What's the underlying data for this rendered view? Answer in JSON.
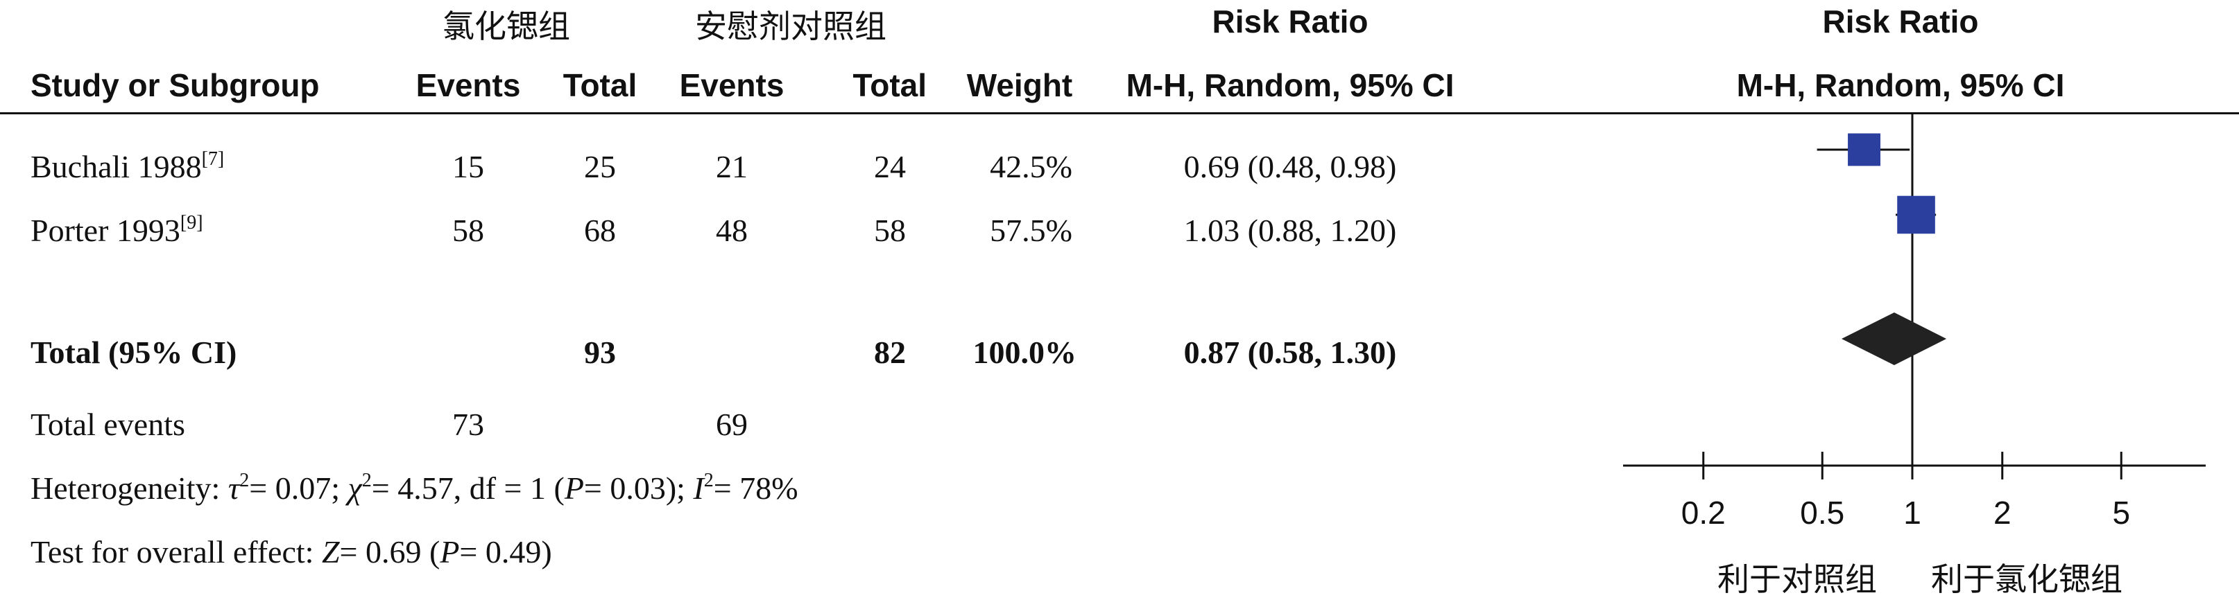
{
  "header": {
    "group_treatment": "氯化锶组",
    "group_control": "安慰剂对照组",
    "risk_ratio_col": "Risk Ratio",
    "risk_ratio_plot": "Risk Ratio",
    "study_col": "Study or Subgroup",
    "events_t": "Events",
    "total_t": "Total",
    "events_c": "Events",
    "total_c": "Total",
    "weight": "Weight",
    "method_col": "M-H, Random, 95% CI",
    "method_plot": "M-H, Random, 95% CI"
  },
  "studies": [
    {
      "name": "Buchali 1988",
      "ref": "[7]",
      "events_t": "15",
      "total_t": "25",
      "events_c": "21",
      "total_c": "24",
      "weight": "42.5%",
      "ci_text": "0.69 (0.48, 0.98)"
    },
    {
      "name": "Porter 1993",
      "ref": "[9]",
      "events_t": "58",
      "total_t": "68",
      "events_c": "48",
      "total_c": "58",
      "weight": "57.5%",
      "ci_text": "1.03 (0.88, 1.20)"
    }
  ],
  "total": {
    "label": "Total (95% CI)",
    "total_t": "93",
    "total_c": "82",
    "weight": "100.0%",
    "ci_text": "0.87 (0.58, 1.30)"
  },
  "total_events": {
    "label": "Total events",
    "events_t": "73",
    "events_c": "69"
  },
  "heterogeneity": {
    "prefix": "Heterogeneity: ",
    "tau_sym": "τ",
    "tau_val": "= 0.07; ",
    "chi_sym": "χ",
    "chi_val": "= 4.57, df = 1 (",
    "p_sym": "P",
    "p_val": "= 0.03); ",
    "i_sym": "I",
    "i_val": "= 78%",
    "sq": "2"
  },
  "overall": {
    "prefix": "Test for overall effect: ",
    "z_sym": "Z",
    "z_val": "= 0.69 (",
    "p_sym": "P",
    "p_val": "= 0.49)"
  },
  "axis_footer": {
    "favours_control": "利于对照组",
    "favours_treatment": "利于氯化锶组"
  },
  "chart_data": {
    "type": "forest",
    "scale": "log",
    "xlim": [
      0.1,
      10
    ],
    "ticks": [
      0.2,
      0.5,
      1,
      2,
      5
    ],
    "tick_labels": [
      "0.2",
      "0.5",
      "1",
      "2",
      "5"
    ],
    "null_line": 1,
    "studies": [
      {
        "name": "Buchali 1988",
        "rr": 0.69,
        "lower": 0.48,
        "upper": 0.98,
        "weight": 42.5
      },
      {
        "name": "Porter 1993",
        "rr": 1.03,
        "lower": 0.88,
        "upper": 1.2,
        "weight": 57.5
      }
    ],
    "pooled": {
      "rr": 0.87,
      "lower": 0.58,
      "upper": 1.3
    },
    "colors": {
      "study_marker": "#2b3f9e",
      "pooled_marker": "#222222",
      "line": "#111111"
    }
  }
}
